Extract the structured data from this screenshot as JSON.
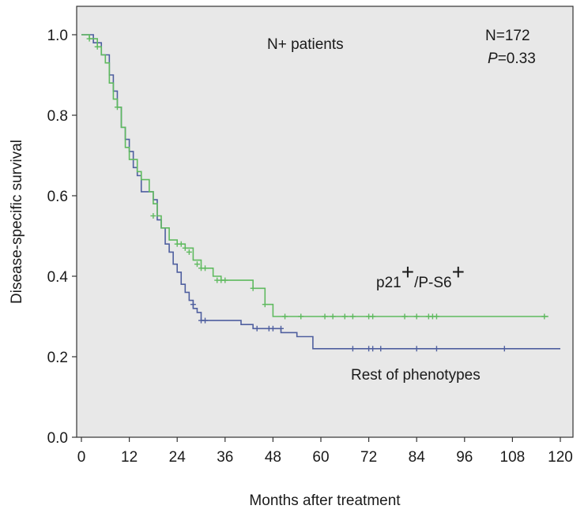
{
  "chart_data": {
    "type": "line",
    "subtype": "kaplan-meier step curves",
    "xlabel": "Months after treatment",
    "ylabel": "Disease-specific survival",
    "xlim": [
      0,
      120
    ],
    "ylim": [
      0,
      1.0
    ],
    "x_ticks": [
      0,
      12,
      24,
      36,
      48,
      60,
      72,
      84,
      96,
      108,
      120
    ],
    "y_ticks": [
      0.0,
      0.2,
      0.4,
      0.6,
      0.8,
      1.0
    ],
    "y_tick_labels": [
      "0.0",
      "0.2",
      "0.4",
      "0.6",
      "0.8",
      "1.0"
    ],
    "grid": false,
    "plot_background": "#e8e8e8",
    "annotations": {
      "subgroup": "N+ patients",
      "n": "N=172",
      "p_italic": "P",
      "p_value": "=0.33"
    },
    "series": [
      {
        "label_main": "p21",
        "label_sup1": "+",
        "label_mid": "/P-S6",
        "label_sup2": "+",
        "color": "#5fba5f",
        "steps": [
          [
            0,
            1.0
          ],
          [
            2,
            0.99
          ],
          [
            4,
            0.97
          ],
          [
            5,
            0.95
          ],
          [
            6,
            0.93
          ],
          [
            7,
            0.88
          ],
          [
            8,
            0.84
          ],
          [
            9,
            0.82
          ],
          [
            10,
            0.77
          ],
          [
            11,
            0.72
          ],
          [
            12,
            0.69
          ],
          [
            14,
            0.66
          ],
          [
            15,
            0.64
          ],
          [
            17,
            0.61
          ],
          [
            18,
            0.58
          ],
          [
            19,
            0.55
          ],
          [
            20,
            0.52
          ],
          [
            22,
            0.49
          ],
          [
            24,
            0.48
          ],
          [
            26,
            0.47
          ],
          [
            28,
            0.44
          ],
          [
            30,
            0.42
          ],
          [
            33,
            0.4
          ],
          [
            35,
            0.39
          ],
          [
            43,
            0.37
          ],
          [
            46,
            0.33
          ],
          [
            48,
            0.3
          ],
          [
            117,
            0.3
          ]
        ],
        "censored": [
          [
            2,
            0.99
          ],
          [
            4,
            0.97
          ],
          [
            9,
            0.82
          ],
          [
            18,
            0.55
          ],
          [
            24,
            0.48
          ],
          [
            25,
            0.48
          ],
          [
            26,
            0.47
          ],
          [
            27,
            0.46
          ],
          [
            29,
            0.43
          ],
          [
            30,
            0.42
          ],
          [
            31,
            0.42
          ],
          [
            34,
            0.39
          ],
          [
            35,
            0.39
          ],
          [
            36,
            0.39
          ],
          [
            43,
            0.37
          ],
          [
            46,
            0.33
          ],
          [
            51,
            0.3
          ],
          [
            55,
            0.3
          ],
          [
            61,
            0.3
          ],
          [
            63,
            0.3
          ],
          [
            66,
            0.3
          ],
          [
            68,
            0.3
          ],
          [
            72,
            0.3
          ],
          [
            73,
            0.3
          ],
          [
            81,
            0.3
          ],
          [
            84,
            0.3
          ],
          [
            87,
            0.3
          ],
          [
            88,
            0.3
          ],
          [
            89,
            0.3
          ],
          [
            116,
            0.3
          ]
        ]
      },
      {
        "label": "Rest of phenotypes",
        "color": "#4f5f9f",
        "steps": [
          [
            0,
            1.0
          ],
          [
            3,
            0.98
          ],
          [
            5,
            0.95
          ],
          [
            7,
            0.9
          ],
          [
            8,
            0.86
          ],
          [
            9,
            0.82
          ],
          [
            10,
            0.77
          ],
          [
            11,
            0.74
          ],
          [
            12,
            0.71
          ],
          [
            13,
            0.67
          ],
          [
            14,
            0.65
          ],
          [
            15,
            0.61
          ],
          [
            18,
            0.59
          ],
          [
            19,
            0.54
          ],
          [
            20,
            0.52
          ],
          [
            21,
            0.48
          ],
          [
            22,
            0.46
          ],
          [
            23,
            0.43
          ],
          [
            24,
            0.41
          ],
          [
            25,
            0.38
          ],
          [
            26,
            0.36
          ],
          [
            27,
            0.34
          ],
          [
            28,
            0.32
          ],
          [
            29,
            0.31
          ],
          [
            30,
            0.29
          ],
          [
            40,
            0.28
          ],
          [
            43,
            0.27
          ],
          [
            50,
            0.26
          ],
          [
            54,
            0.25
          ],
          [
            58,
            0.22
          ],
          [
            120,
            0.22
          ]
        ],
        "censored": [
          [
            28,
            0.33
          ],
          [
            30,
            0.29
          ],
          [
            31,
            0.29
          ],
          [
            44,
            0.27
          ],
          [
            47,
            0.27
          ],
          [
            48,
            0.27
          ],
          [
            50,
            0.27
          ],
          [
            68,
            0.22
          ],
          [
            72,
            0.22
          ],
          [
            73,
            0.22
          ],
          [
            75,
            0.22
          ],
          [
            84,
            0.22
          ],
          [
            89,
            0.22
          ],
          [
            106,
            0.22
          ]
        ]
      }
    ]
  }
}
